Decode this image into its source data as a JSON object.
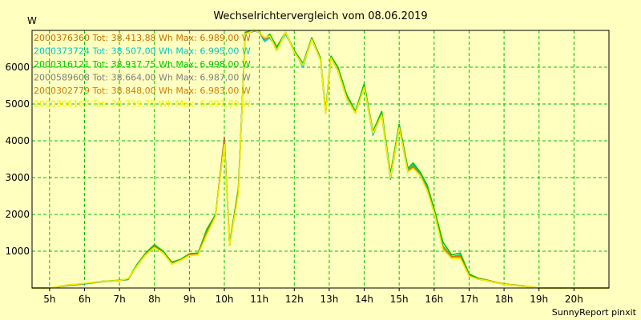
{
  "chart_data": {
    "type": "line",
    "title": "Wechselrichtervergleich vom 08.06.2019",
    "ylabel": "W",
    "xlabel": "",
    "credit": "SunnyReport pinxit",
    "xlim": [
      4.5,
      21.0
    ],
    "ylim": [
      0,
      7000
    ],
    "grid": true,
    "legend_position": "top-left",
    "y_ticks": [
      1000,
      2000,
      3000,
      4000,
      5000,
      6000
    ],
    "y_tick_labels": [
      "1000",
      "2000",
      "3000",
      "4000",
      "5000",
      "6000"
    ],
    "x_ticks": [
      5,
      6,
      7,
      8,
      9,
      10,
      11,
      12,
      13,
      14,
      15,
      16,
      17,
      18,
      19,
      20
    ],
    "x_tick_labels": [
      "5h",
      "6h",
      "7h",
      "8h",
      "9h",
      "10h",
      "11h",
      "12h",
      "13h",
      "14h",
      "15h",
      "16h",
      "17h",
      "18h",
      "19h",
      "20h"
    ],
    "x": [
      4.5,
      5.0,
      5.5,
      6.0,
      6.5,
      7.0,
      7.25,
      7.5,
      7.75,
      8.0,
      8.25,
      8.5,
      8.75,
      9.0,
      9.25,
      9.5,
      9.75,
      10.0,
      10.15,
      10.4,
      10.6,
      10.85,
      11.0,
      11.15,
      11.3,
      11.5,
      11.75,
      12.0,
      12.25,
      12.5,
      12.75,
      12.9,
      13.05,
      13.25,
      13.5,
      13.75,
      14.0,
      14.25,
      14.5,
      14.75,
      15.0,
      15.25,
      15.4,
      15.6,
      15.8,
      16.0,
      16.25,
      16.5,
      16.75,
      17.0,
      17.25,
      17.5,
      17.75,
      18.0,
      18.5,
      19.0,
      19.5,
      20.0,
      20.5,
      21.0
    ],
    "series": [
      {
        "name": "2000376360",
        "color": "#c87000",
        "label": "2000376360 Tot: 38.413,88 Wh Max: 6.989,00 W",
        "values": [
          0,
          0,
          80,
          120,
          180,
          200,
          250,
          600,
          900,
          1120,
          950,
          650,
          750,
          900,
          900,
          1500,
          1950,
          4100,
          1150,
          2600,
          6900,
          7000,
          6950,
          6800,
          6850,
          6450,
          6950,
          6400,
          6050,
          6750,
          6200,
          4750,
          6250,
          5900,
          5150,
          4750,
          5450,
          4200,
          4700,
          3000,
          4350,
          3150,
          3300,
          3050,
          2650,
          2050,
          1100,
          850,
          850,
          350,
          250,
          200,
          150,
          100,
          50,
          0,
          0,
          0,
          0,
          0
        ]
      },
      {
        "name": "2000373724",
        "color": "#00c8c8",
        "label": "2000373724 Tot: 38.507,00 Wh Max: 6.995,00 W",
        "values": [
          0,
          0,
          60,
          110,
          170,
          200,
          230,
          620,
          930,
          1150,
          980,
          680,
          770,
          920,
          930,
          1550,
          1980,
          4000,
          1200,
          2650,
          6950,
          7000,
          6950,
          6700,
          6800,
          6500,
          6900,
          6450,
          6000,
          6800,
          6200,
          4800,
          6300,
          5900,
          5200,
          4800,
          5500,
          4150,
          4750,
          2950,
          4400,
          3200,
          3350,
          3100,
          2750,
          2100,
          1150,
          850,
          900,
          330,
          250,
          200,
          150,
          100,
          50,
          0,
          0,
          0,
          0,
          0
        ]
      },
      {
        "name": "2000316121",
        "color": "#00c800",
        "label": "2000316121 Tot: 38.937,75 Wh Max: 6.998,00 W",
        "values": [
          0,
          0,
          70,
          120,
          180,
          210,
          250,
          640,
          950,
          1180,
          1000,
          700,
          780,
          930,
          950,
          1600,
          2000,
          3950,
          1200,
          2700,
          6950,
          7000,
          6980,
          6750,
          6900,
          6550,
          6950,
          6450,
          6100,
          6800,
          6250,
          4800,
          6300,
          6000,
          5250,
          4800,
          5550,
          4250,
          4800,
          3100,
          4450,
          3250,
          3400,
          3150,
          2800,
          2150,
          1250,
          900,
          950,
          380,
          270,
          220,
          160,
          110,
          60,
          0,
          0,
          0,
          0,
          0
        ]
      },
      {
        "name": "2000589608",
        "color": "#808080",
        "label": "2000589608 Tot: 38.664,00 Wh Max: 6.987,00 W",
        "values": [
          0,
          0,
          70,
          120,
          175,
          200,
          240,
          610,
          920,
          1140,
          960,
          660,
          760,
          910,
          910,
          1500,
          1960,
          4050,
          1150,
          2620,
          6900,
          6980,
          6950,
          6750,
          6850,
          6450,
          6950,
          6400,
          6050,
          6750,
          6200,
          4750,
          6250,
          5900,
          5150,
          4750,
          5450,
          4200,
          4700,
          3000,
          4350,
          3150,
          3300,
          3050,
          2700,
          2050,
          1100,
          850,
          850,
          340,
          240,
          200,
          150,
          100,
          50,
          0,
          0,
          0,
          0,
          0
        ]
      },
      {
        "name": "2000302779",
        "color": "#d08000",
        "label": "2000302779 Tot: 38.848,00 Wh Max: 6.983,00 W",
        "values": [
          0,
          0,
          70,
          120,
          180,
          200,
          250,
          600,
          920,
          1130,
          960,
          660,
          760,
          910,
          920,
          1520,
          1970,
          4000,
          1150,
          2620,
          6920,
          6990,
          6960,
          6760,
          6860,
          6460,
          6950,
          6420,
          6060,
          6760,
          6210,
          4760,
          6260,
          5910,
          5160,
          4760,
          5460,
          4210,
          4710,
          3010,
          4360,
          3160,
          3310,
          3060,
          2670,
          2060,
          1110,
          860,
          860,
          330,
          250,
          210,
          160,
          110,
          60,
          0,
          0,
          0,
          0,
          0
        ]
      },
      {
        "name": "2000306167",
        "color": "#f0f000",
        "label": "2000306167 Tot: 38.739,75 Wh Max: 6.997,00 W",
        "values": [
          0,
          0,
          80,
          130,
          180,
          200,
          260,
          600,
          900,
          1100,
          950,
          650,
          750,
          880,
          900,
          1450,
          1950,
          3900,
          1150,
          2550,
          6900,
          7000,
          6950,
          6800,
          6850,
          6450,
          6950,
          6400,
          6050,
          6750,
          6200,
          4750,
          6250,
          5900,
          5150,
          4750,
          5450,
          4200,
          4700,
          3000,
          4350,
          3150,
          3250,
          3050,
          2650,
          2050,
          1050,
          800,
          800,
          320,
          240,
          200,
          150,
          100,
          50,
          0,
          0,
          0,
          0,
          0
        ]
      }
    ]
  }
}
